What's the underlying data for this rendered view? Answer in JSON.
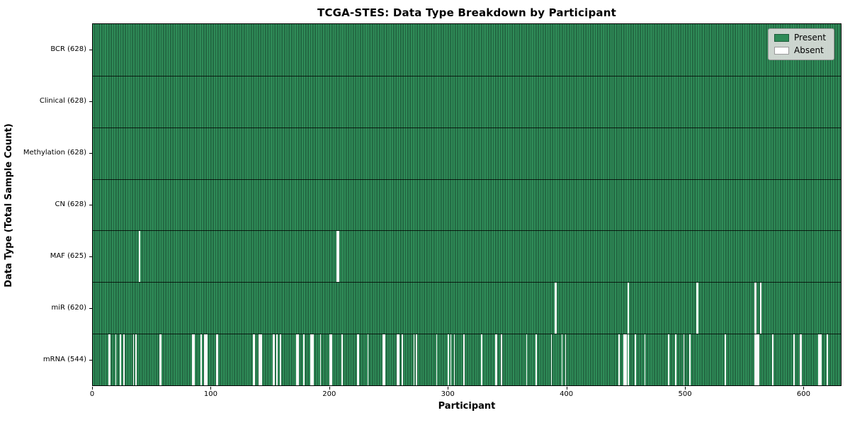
{
  "chart_data": {
    "type": "heatmap",
    "title": "TCGA-STES: Data Type Breakdown by Participant",
    "xlabel": "Participant",
    "ylabel": "Data Type (Total Sample Count)",
    "x_ticks": [
      0,
      100,
      200,
      300,
      400,
      500,
      600
    ],
    "xlim": [
      0,
      632
    ],
    "n_participants": 628,
    "grid": false,
    "legend_position": "upper right",
    "legend": [
      {
        "label": "Present",
        "color": "#2e8b57"
      },
      {
        "label": "Absent",
        "color": "#ffffff"
      }
    ],
    "colors": {
      "present": "#2e8b57",
      "present_edge": "#20613e",
      "absent": "#ffffff",
      "frame": "#000000",
      "legend_bg": "#d8dcd8"
    },
    "rows": [
      {
        "name": "bcr",
        "label": "BCR (628)",
        "present_count": 628,
        "absent_participants": []
      },
      {
        "name": "clinical",
        "label": "Clinical (628)",
        "present_count": 628,
        "absent_participants": []
      },
      {
        "name": "methylation",
        "label": "Methylation (628)",
        "present_count": 628,
        "absent_participants": []
      },
      {
        "name": "cn",
        "label": "CN (628)",
        "present_count": 628,
        "absent_participants": []
      },
      {
        "name": "maf",
        "label": "MAF (625)",
        "present_count": 625,
        "absent_participants": [
          39,
          206,
          207
        ]
      },
      {
        "name": "mir",
        "label": "miR (620)",
        "present_count": 620,
        "absent_participants": [
          390,
          391,
          452,
          510,
          511,
          559,
          560,
          564
        ]
      },
      {
        "name": "mrna",
        "label": "mRNA (544)",
        "present_count": 544,
        "absent_participants": [
          13,
          14,
          19,
          23,
          26,
          34,
          36,
          56,
          57,
          84,
          85,
          91,
          94,
          95,
          96,
          104,
          105,
          135,
          136,
          140,
          141,
          142,
          152,
          153,
          155,
          158,
          172,
          173,
          178,
          184,
          185,
          186,
          192,
          200,
          201,
          210,
          223,
          224,
          232,
          245,
          246,
          257,
          258,
          261,
          271,
          273,
          290,
          300,
          302,
          305,
          313,
          328,
          340,
          341,
          345,
          366,
          374,
          387,
          396,
          399,
          444,
          448,
          449,
          450,
          452,
          458,
          466,
          486,
          492,
          499,
          504,
          534,
          559,
          560,
          561,
          562,
          574,
          592,
          597,
          598,
          613,
          614,
          615,
          620
        ]
      }
    ]
  }
}
